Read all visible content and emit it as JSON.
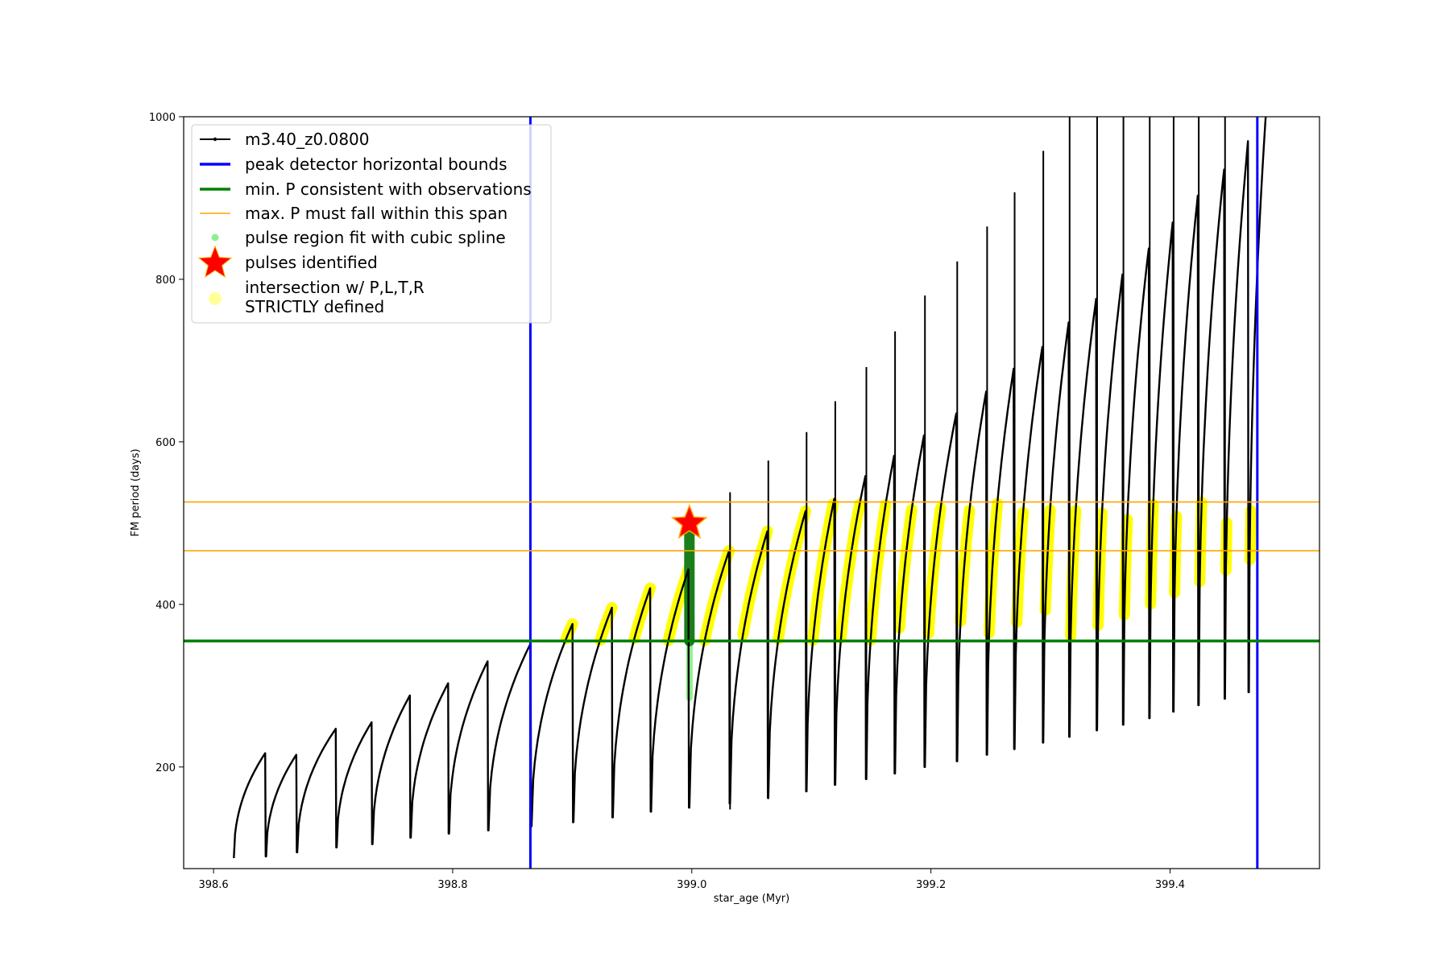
{
  "chart_data": {
    "type": "line",
    "title": "",
    "xlabel": "star_age (Myr)",
    "ylabel": "FM period (days)",
    "xlim": [
      398.575,
      399.525
    ],
    "ylim": [
      75,
      1000
    ],
    "x_ticks": [
      398.6,
      398.8,
      399.0,
      399.2,
      399.4
    ],
    "x_tick_labels": [
      "398.6",
      "398.8",
      "399.0",
      "399.2",
      "399.4"
    ],
    "y_ticks": [
      200,
      400,
      600,
      800,
      1000
    ],
    "y_tick_labels": [
      "200",
      "400",
      "600",
      "800",
      "1000"
    ],
    "grid": false,
    "legend_position": "upper-left",
    "legend": [
      {
        "label": "m3.40_z0.0800",
        "style": "line-marker",
        "color": "#000000"
      },
      {
        "label": "peak detector horizontal bounds",
        "style": "thick-line",
        "color": "#0000ff"
      },
      {
        "label": "min. P consistent with observations",
        "style": "thick-line",
        "color": "#008000"
      },
      {
        "label": "max. P must fall within this span",
        "style": "thin-line",
        "color": "#ffa500"
      },
      {
        "label": "pulse region fit with cubic spline",
        "style": "dot",
        "color": "#90ee90"
      },
      {
        "label": "pulses identified",
        "style": "star",
        "color": "#ff0000"
      },
      {
        "label": "intersection w/ P,L,T,R",
        "label2": "STRICTLY defined",
        "style": "big-dot",
        "color": "#ffff99"
      }
    ],
    "reference_lines": {
      "vertical_blue_x": [
        398.865,
        399.473
      ],
      "horizontal_green_y": 355,
      "horizontal_orange_y": [
        466,
        526
      ]
    },
    "star": {
      "x": 398.998,
      "y": 500
    },
    "pulse_cycles": [
      {
        "start": 398.617,
        "min": 88,
        "peak": 217,
        "drop_to": 90
      },
      {
        "start": 398.644,
        "min": 90,
        "peak": 215,
        "drop_to": 95
      },
      {
        "start": 398.67,
        "min": 95,
        "peak": 247,
        "drop_to": 101
      },
      {
        "start": 398.703,
        "min": 101,
        "peak": 255,
        "drop_to": 105
      },
      {
        "start": 398.733,
        "min": 105,
        "peak": 288,
        "drop_to": 113
      },
      {
        "start": 398.765,
        "min": 113,
        "peak": 303,
        "drop_to": 118
      },
      {
        "start": 398.797,
        "min": 118,
        "peak": 330,
        "drop_to": 122
      },
      {
        "start": 398.83,
        "min": 122,
        "peak": 352,
        "drop_to": 127
      },
      {
        "start": 398.866,
        "min": 127,
        "peak": 376,
        "drop_to": 132
      },
      {
        "start": 398.901,
        "min": 132,
        "peak": 396,
        "drop_to": 138
      },
      {
        "start": 398.934,
        "min": 138,
        "peak": 420,
        "drop_to": 145
      },
      {
        "start": 398.966,
        "min": 145,
        "peak": 443,
        "drop_to": 150
      },
      {
        "start": 398.998,
        "min": 150,
        "peak": 466,
        "drop_to": 155
      },
      {
        "start": 399.032,
        "min": 155,
        "peak": 490,
        "drop_to": 162
      },
      {
        "start": 399.064,
        "min": 162,
        "peak": 515,
        "drop_to": 170
      },
      {
        "start": 399.096,
        "min": 170,
        "peak": 530,
        "drop_to": 178
      },
      {
        "start": 399.12,
        "min": 178,
        "peak": 558,
        "drop_to": 185
      },
      {
        "start": 399.146,
        "min": 185,
        "peak": 583,
        "drop_to": 192
      },
      {
        "start": 399.17,
        "min": 192,
        "peak": 608,
        "drop_to": 200
      },
      {
        "start": 399.195,
        "min": 200,
        "peak": 635,
        "drop_to": 207
      },
      {
        "start": 399.222,
        "min": 207,
        "peak": 662,
        "drop_to": 215
      },
      {
        "start": 399.247,
        "min": 215,
        "peak": 690,
        "drop_to": 222
      },
      {
        "start": 399.27,
        "min": 222,
        "peak": 717,
        "drop_to": 230
      },
      {
        "start": 399.294,
        "min": 230,
        "peak": 747,
        "drop_to": 237
      },
      {
        "start": 399.316,
        "min": 237,
        "peak": 776,
        "drop_to": 245
      },
      {
        "start": 399.339,
        "min": 245,
        "peak": 806,
        "drop_to": 252
      },
      {
        "start": 399.361,
        "min": 252,
        "peak": 838,
        "drop_to": 260
      },
      {
        "start": 399.383,
        "min": 260,
        "peak": 870,
        "drop_to": 268
      },
      {
        "start": 399.403,
        "min": 268,
        "peak": 903,
        "drop_to": 276
      },
      {
        "start": 399.424,
        "min": 276,
        "peak": 935,
        "drop_to": 284
      },
      {
        "start": 399.446,
        "min": 284,
        "peak": 970,
        "drop_to": 292
      },
      {
        "start": 399.466,
        "min": 292,
        "peak": 1000,
        "drop_to": 1000
      }
    ],
    "spikes": [
      {
        "x": 399.032,
        "top": 538
      },
      {
        "x": 399.064,
        "top": 577
      },
      {
        "x": 399.096,
        "top": 612
      },
      {
        "x": 399.12,
        "top": 650
      },
      {
        "x": 399.146,
        "top": 692
      },
      {
        "x": 399.17,
        "top": 736
      },
      {
        "x": 399.195,
        "top": 780
      },
      {
        "x": 399.222,
        "top": 822
      },
      {
        "x": 399.247,
        "top": 865
      },
      {
        "x": 399.27,
        "top": 907
      },
      {
        "x": 399.294,
        "top": 958
      },
      {
        "x": 399.316,
        "top": 1000
      },
      {
        "x": 399.339,
        "top": 1000
      },
      {
        "x": 399.361,
        "top": 1000
      },
      {
        "x": 399.383,
        "top": 1000
      },
      {
        "x": 399.403,
        "top": 1000
      },
      {
        "x": 399.424,
        "top": 1000
      },
      {
        "x": 399.446,
        "top": 1000
      }
    ],
    "spline_region": {
      "x": 398.998,
      "ymin": 285,
      "ymax": 355
    },
    "green_region": {
      "x": 398.998,
      "ymin": 355,
      "ymax": 500
    },
    "yellow_band": {
      "ymin": 355,
      "ymax": 526
    }
  }
}
